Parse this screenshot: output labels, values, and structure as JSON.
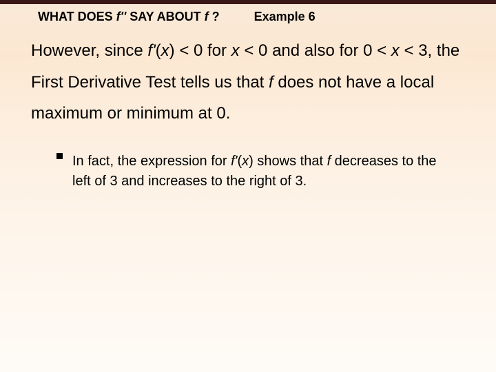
{
  "header": {
    "left_prefix": "WHAT DOES ",
    "left_fpp": "f''",
    "left_mid": " SAY ABOUT ",
    "left_f": "f ",
    "left_q": "?",
    "right": "Example 6"
  },
  "main": {
    "t1": "However, since ",
    "t2": "f'",
    "t3": "(",
    "t4": "x",
    "t5": ") < 0 for ",
    "t6": "x",
    "t7": " < 0 and also for 0 < ",
    "t8": "x",
    "t9": " < 3, the First Derivative Test tells us that ",
    "t10": "f",
    "t11": " does not have a local maximum or minimum at 0."
  },
  "bullet": {
    "b1": "In fact, the expression for ",
    "b2": "f'",
    "b3": "(",
    "b4": "x",
    "b5": ") shows that ",
    "b6": "f",
    "b7": " decreases to the left of 3 and increases to the right of 3."
  },
  "colors": {
    "text": "#000000",
    "top_bar": "#3a1818",
    "bg_top": "#f8e9d8",
    "bg_bottom": "#fefbf6"
  }
}
